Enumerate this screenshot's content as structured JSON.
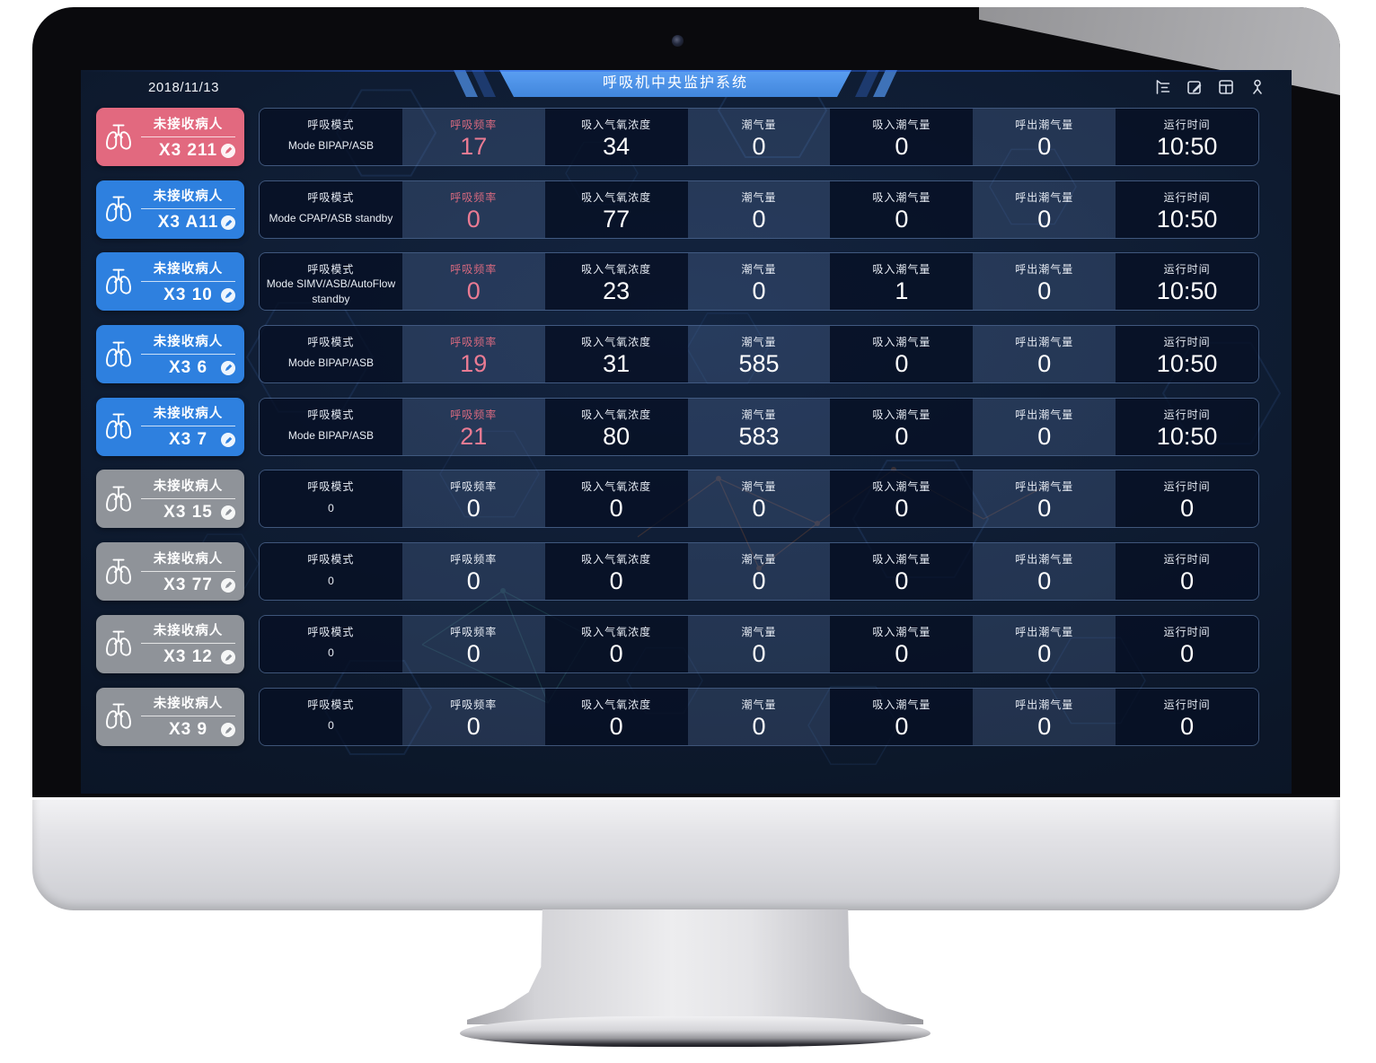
{
  "header": {
    "date": "2018/11/13",
    "title": "呼吸机中央监护系统",
    "icons": [
      {
        "name": "menu-collapse-icon"
      },
      {
        "name": "edit-note-icon"
      },
      {
        "name": "layout-panels-icon"
      },
      {
        "name": "user-icon"
      }
    ]
  },
  "card_status_label": "未接收病人",
  "table": {
    "columns": [
      {
        "key": "mode",
        "label": "呼吸模式",
        "accent": false
      },
      {
        "key": "rr",
        "label": "呼吸频率",
        "accent": true
      },
      {
        "key": "fio2",
        "label": "吸入气氧浓度",
        "accent": false
      },
      {
        "key": "vt",
        "label": "潮气量",
        "accent": false
      },
      {
        "key": "vti",
        "label": "吸入潮气量",
        "accent": false
      },
      {
        "key": "vte",
        "label": "呼出潮气量",
        "accent": false
      },
      {
        "key": "runtime",
        "label": "运行时间",
        "accent": false
      }
    ]
  },
  "rows": [
    {
      "device_id": "X3 211",
      "status": "alarm",
      "mode": "Mode BIPAP/ASB",
      "rr": "17",
      "fio2": "34",
      "vt": "0",
      "vti": "0",
      "vte": "0",
      "runtime": "10:50"
    },
    {
      "device_id": "X3 A11",
      "status": "online",
      "mode": "Mode CPAP/ASB standby",
      "rr": "0",
      "fio2": "77",
      "vt": "0",
      "vti": "0",
      "vte": "0",
      "runtime": "10:50"
    },
    {
      "device_id": "X3 10",
      "status": "online",
      "mode": "Mode SIMV/ASB/AutoFlow standby",
      "rr": "0",
      "fio2": "23",
      "vt": "0",
      "vti": "1",
      "vte": "0",
      "runtime": "10:50"
    },
    {
      "device_id": "X3 6",
      "status": "online",
      "mode": "Mode BIPAP/ASB",
      "rr": "19",
      "fio2": "31",
      "vt": "585",
      "vti": "0",
      "vte": "0",
      "runtime": "10:50"
    },
    {
      "device_id": "X3 7",
      "status": "online",
      "mode": "Mode BIPAP/ASB",
      "rr": "21",
      "fio2": "80",
      "vt": "583",
      "vti": "0",
      "vte": "0",
      "runtime": "10:50"
    },
    {
      "device_id": "X3 15",
      "status": "offline",
      "mode": "0",
      "rr": "0",
      "fio2": "0",
      "vt": "0",
      "vti": "0",
      "vte": "0",
      "runtime": "0"
    },
    {
      "device_id": "X3 77",
      "status": "offline",
      "mode": "0",
      "rr": "0",
      "fio2": "0",
      "vt": "0",
      "vti": "0",
      "vte": "0",
      "runtime": "0"
    },
    {
      "device_id": "X3 12",
      "status": "offline",
      "mode": "0",
      "rr": "0",
      "fio2": "0",
      "vt": "0",
      "vti": "0",
      "vte": "0",
      "runtime": "0"
    },
    {
      "device_id": "X3 9",
      "status": "offline",
      "mode": "0",
      "rr": "0",
      "fio2": "0",
      "vt": "0",
      "vti": "0",
      "vte": "0",
      "runtime": "0"
    }
  ],
  "colors": {
    "alarm_card": "#e2697f",
    "online_card": "#2e80df",
    "offline_card": "#8f9399",
    "accent_label": "#d7697f",
    "accent_value": "#ea7b93",
    "banner_blue": "#4186dc"
  }
}
